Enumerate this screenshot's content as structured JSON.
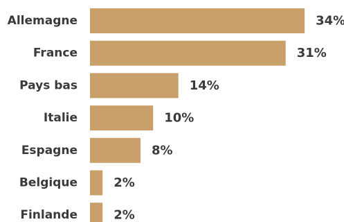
{
  "chart_data": {
    "type": "bar",
    "orientation": "horizontal",
    "categories": [
      "Allemagne",
      "France",
      "Pays bas",
      "Italie",
      "Espagne",
      "Belgique",
      "Finlande"
    ],
    "values": [
      34,
      31,
      14,
      10,
      8,
      2,
      2
    ],
    "value_labels": [
      "34%",
      "31%",
      "14%",
      "10%",
      "8%",
      "2%",
      "2%"
    ],
    "unit": "%",
    "bar_color": "#c9a06a",
    "text_color": "#3a3a3a",
    "title": "",
    "xlabel": "",
    "ylabel": "",
    "grid": false,
    "legend": "none"
  }
}
